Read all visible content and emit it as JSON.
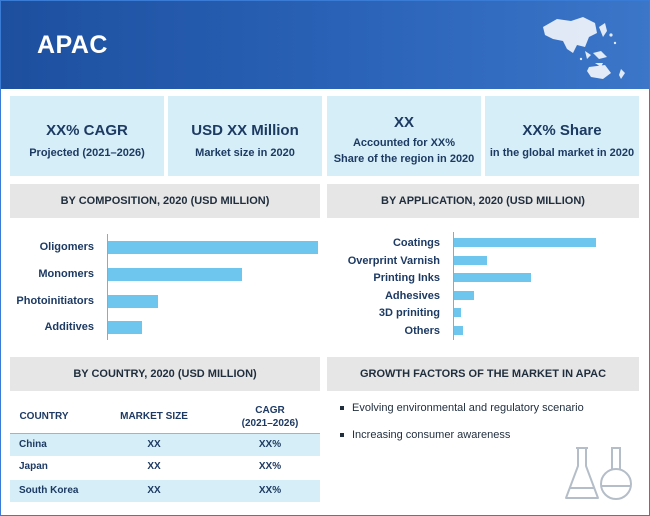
{
  "header": {
    "title": "APAC"
  },
  "kpis": [
    {
      "main": "XX% CAGR",
      "sub": "Projected (2021–2026)"
    },
    {
      "main": "USD XX Million",
      "sub": "Market size in 2020"
    },
    {
      "main": "XX",
      "sub1": "Accounted  for XX%",
      "sub2": "Share of the region in 2020"
    },
    {
      "main": "XX% Share",
      "sub": "in the global market in 2020"
    }
  ],
  "panels": {
    "composition": "BY COMPOSITION, 2020 (USD MILLION)",
    "application": "BY APPLICATION, 2020 (USD MILLION)",
    "country": "BY COUNTRY, 2020 (USD MILLION)",
    "growth": "GROWTH FACTORS OF THE MARKET IN APAC"
  },
  "chart_data": [
    {
      "type": "bar",
      "orientation": "horizontal",
      "title": "BY COMPOSITION, 2020 (USD MILLION)",
      "categories": [
        "Oligomers",
        "Monomers",
        "Photoinitiators",
        "Additives"
      ],
      "values": [
        100,
        64,
        24,
        16
      ],
      "color": "#6ec6ee"
    },
    {
      "type": "bar",
      "orientation": "horizontal",
      "title": "BY APPLICATION, 2020 (USD MILLION)",
      "categories": [
        "Coatings",
        "Overprint Varnish",
        "Printing Inks",
        "Adhesives",
        "3D priniting",
        "Others"
      ],
      "values": [
        100,
        23,
        54,
        14,
        5,
        6
      ],
      "color": "#6ec6ee"
    }
  ],
  "country_table": {
    "headers": {
      "country": "COUNTRY",
      "market_size": "MARKET SIZE",
      "cagr_line1": "CAGR",
      "cagr_line2": "(2021–2026)"
    },
    "rows": [
      {
        "country": "China",
        "market_size": "XX",
        "cagr": "XX%"
      },
      {
        "country": "Japan",
        "market_size": "XX",
        "cagr": "XX%"
      },
      {
        "country": "South Korea",
        "market_size": "XX",
        "cagr": "XX%"
      }
    ]
  },
  "growth_factors": [
    "Evolving environmental and regulatory scenario",
    "Increasing consumer awareness"
  ],
  "colors": {
    "banner": "#2a63b8",
    "accent": "#6ec6ee",
    "kpi_bg": "#d6eef8",
    "panel_head": "#e6e6e6"
  },
  "icons": [
    "apac-map-icon",
    "lab-flask-icon"
  ]
}
